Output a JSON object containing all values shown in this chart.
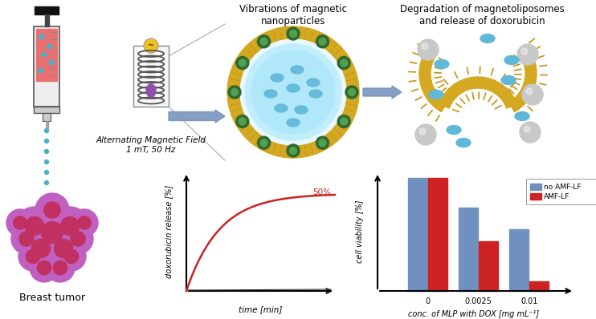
{
  "background_color": "#ffffff",
  "syringe": {
    "liquid_color": "#e87070",
    "cap_color": "#111111",
    "dots_color": "#4ab0c8"
  },
  "tumor": {
    "outer_color": "#c060c0",
    "inner_color": "#c03060",
    "label": "Breast tumor"
  },
  "amf_label1": "Alternating Magnetic Field",
  "amf_label2": "1 mT, 50 Hz",
  "liposome_title": "Vibrations of magnetic\nnanoparticles",
  "degradation_title": "Degradation of magnetoliposomes\nand release of doxorubicin",
  "dox_plot": {
    "xlabel": "time [min]",
    "ylabel": "doxorubicin release [%]",
    "label_50": "50%",
    "curve_color": "#cc2222"
  },
  "bar_chart": {
    "xlabel": "conc. of MLP with DOX [mg mL⁻¹]",
    "ylabel": "cell viability [%]",
    "categories": [
      "0",
      "0.0025",
      "0.01"
    ],
    "blue_values": [
      95,
      70,
      52
    ],
    "red_values": [
      95,
      42,
      8
    ],
    "blue_color": "#7090bf",
    "red_color": "#cc2222",
    "legend_blue": "no AMF-LF",
    "legend_red": "AMF-LF"
  },
  "colors": {
    "liposome_outer": "#d4a820",
    "liposome_inner_ring": "#c8f0ff",
    "liposome_core": "#a8e0f8",
    "nanoparticle_dark": "#306830",
    "nanoparticle_light": "#50a050",
    "arrow_blue": "#5080b0",
    "coil_color": "#555555",
    "dox_dot_color": "#60b8d8",
    "gray_sphere": "#b0b0b0",
    "membrane_gold": "#d4a820"
  }
}
